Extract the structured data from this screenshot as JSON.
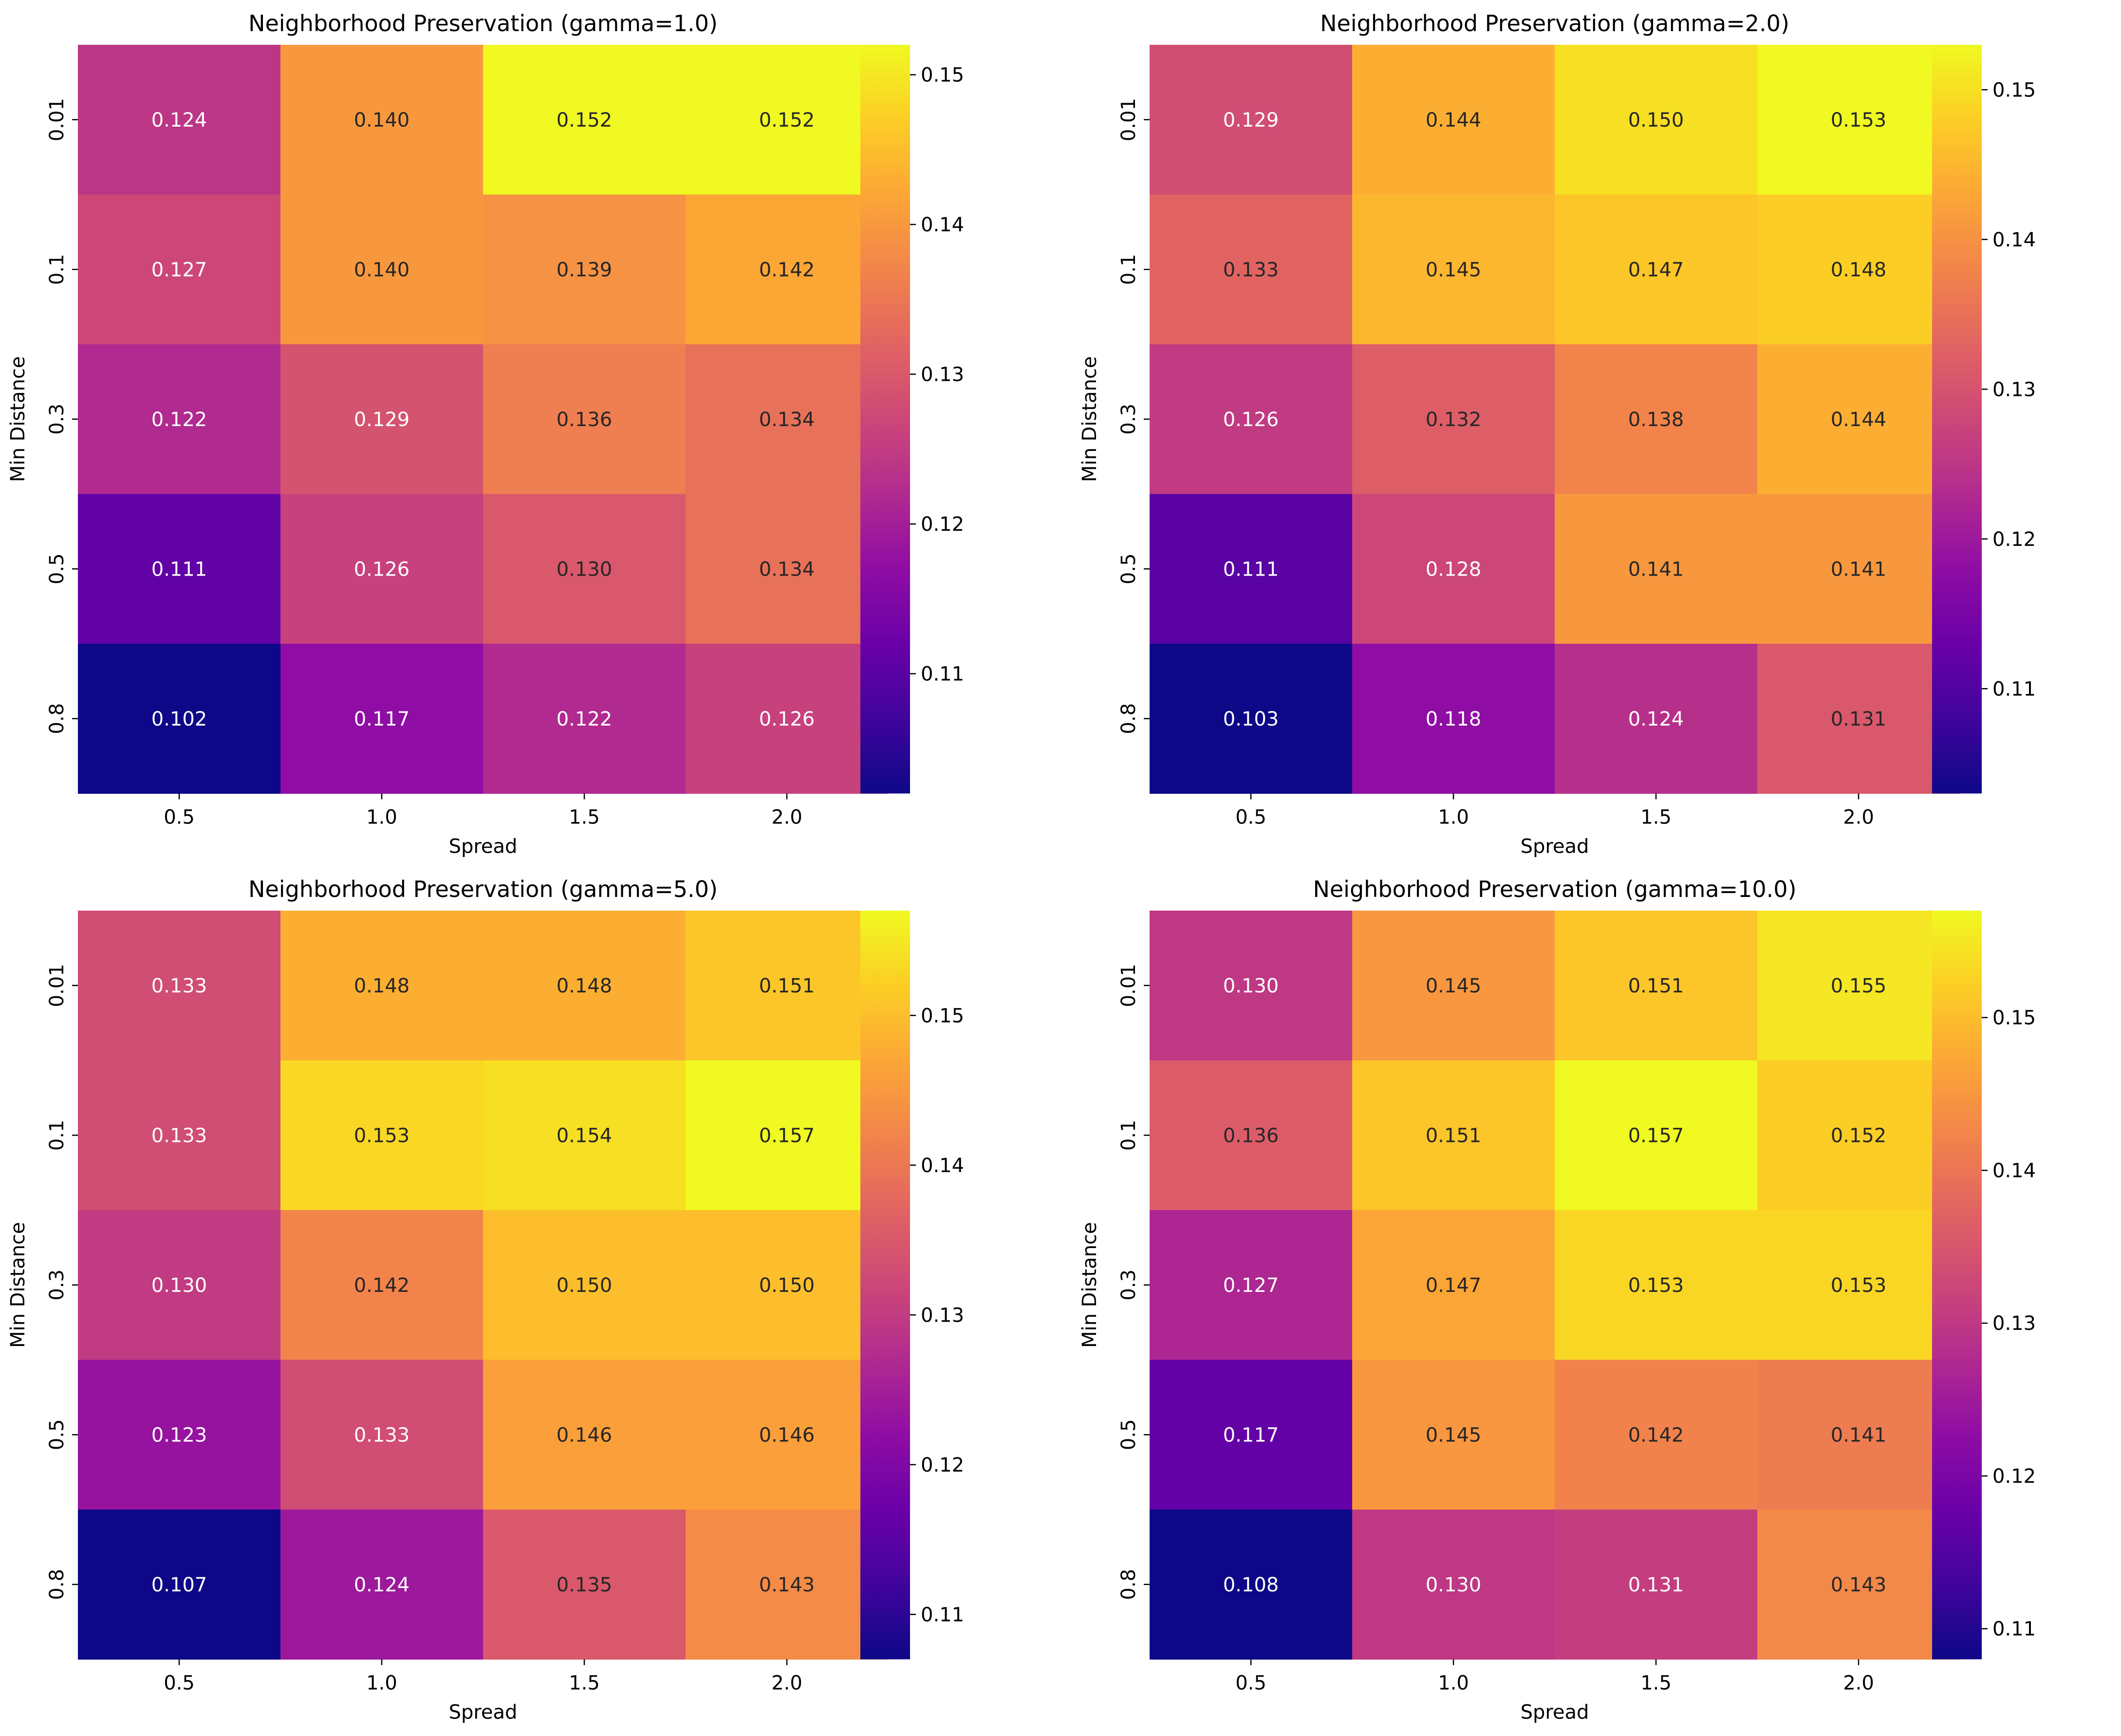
{
  "chart_data": [
    {
      "type": "heatmap",
      "title": "Neighborhood Preservation (gamma=1.0)",
      "xlabel": "Spread",
      "ylabel": "Min Distance",
      "x_categories": [
        "0.5",
        "1.0",
        "1.5",
        "2.0"
      ],
      "y_categories": [
        "0.01",
        "0.1",
        "0.3",
        "0.5",
        "0.8"
      ],
      "values": [
        [
          0.124,
          0.14,
          0.152,
          0.152
        ],
        [
          0.127,
          0.14,
          0.139,
          0.142
        ],
        [
          0.122,
          0.129,
          0.136,
          0.134
        ],
        [
          0.111,
          0.126,
          0.13,
          0.134
        ],
        [
          0.102,
          0.117,
          0.122,
          0.126
        ]
      ],
      "labels": [
        [
          "0.124",
          "0.140",
          "0.152",
          "0.152"
        ],
        [
          "0.127",
          "0.140",
          "0.139",
          "0.142"
        ],
        [
          "0.122",
          "0.129",
          "0.136",
          "0.134"
        ],
        [
          "0.111",
          "0.126",
          "0.130",
          "0.134"
        ],
        [
          "0.102",
          "0.117",
          "0.122",
          "0.126"
        ]
      ],
      "colormap": "plasma",
      "color_range": [
        0.102,
        0.152
      ],
      "colorbar_ticks": [
        0.11,
        0.12,
        0.13,
        0.14,
        0.15
      ],
      "colorbar_tick_labels": [
        "0.11",
        "0.12",
        "0.13",
        "0.14",
        "0.15"
      ],
      "grid": false,
      "legend": "none"
    },
    {
      "type": "heatmap",
      "title": "Neighborhood Preservation (gamma=2.0)",
      "xlabel": "Spread",
      "ylabel": "Min Distance",
      "x_categories": [
        "0.5",
        "1.0",
        "1.5",
        "2.0"
      ],
      "y_categories": [
        "0.01",
        "0.1",
        "0.3",
        "0.5",
        "0.8"
      ],
      "values": [
        [
          0.129,
          0.144,
          0.15,
          0.153
        ],
        [
          0.133,
          0.145,
          0.147,
          0.148
        ],
        [
          0.126,
          0.132,
          0.138,
          0.144
        ],
        [
          0.111,
          0.128,
          0.141,
          0.141
        ],
        [
          0.103,
          0.118,
          0.124,
          0.131
        ]
      ],
      "labels": [
        [
          "0.129",
          "0.144",
          "0.150",
          "0.153"
        ],
        [
          "0.133",
          "0.145",
          "0.147",
          "0.148"
        ],
        [
          "0.126",
          "0.132",
          "0.138",
          "0.144"
        ],
        [
          "0.111",
          "0.128",
          "0.141",
          "0.141"
        ],
        [
          "0.103",
          "0.118",
          "0.124",
          "0.131"
        ]
      ],
      "colormap": "plasma",
      "color_range": [
        0.103,
        0.153
      ],
      "colorbar_ticks": [
        0.11,
        0.12,
        0.13,
        0.14,
        0.15
      ],
      "colorbar_tick_labels": [
        "0.11",
        "0.12",
        "0.13",
        "0.14",
        "0.15"
      ],
      "grid": false,
      "legend": "none"
    },
    {
      "type": "heatmap",
      "title": "Neighborhood Preservation (gamma=5.0)",
      "xlabel": "Spread",
      "ylabel": "Min Distance",
      "x_categories": [
        "0.5",
        "1.0",
        "1.5",
        "2.0"
      ],
      "y_categories": [
        "0.01",
        "0.1",
        "0.3",
        "0.5",
        "0.8"
      ],
      "values": [
        [
          0.133,
          0.148,
          0.148,
          0.151
        ],
        [
          0.133,
          0.153,
          0.154,
          0.157
        ],
        [
          0.13,
          0.142,
          0.15,
          0.15
        ],
        [
          0.123,
          0.133,
          0.146,
          0.146
        ],
        [
          0.107,
          0.124,
          0.135,
          0.143
        ]
      ],
      "labels": [
        [
          "0.133",
          "0.148",
          "0.148",
          "0.151"
        ],
        [
          "0.133",
          "0.153",
          "0.154",
          "0.157"
        ],
        [
          "0.130",
          "0.142",
          "0.150",
          "0.150"
        ],
        [
          "0.123",
          "0.133",
          "0.146",
          "0.146"
        ],
        [
          "0.107",
          "0.124",
          "0.135",
          "0.143"
        ]
      ],
      "colormap": "plasma",
      "color_range": [
        0.107,
        0.157
      ],
      "colorbar_ticks": [
        0.11,
        0.12,
        0.13,
        0.14,
        0.15
      ],
      "colorbar_tick_labels": [
        "0.11",
        "0.12",
        "0.13",
        "0.14",
        "0.15"
      ],
      "grid": false,
      "legend": "none"
    },
    {
      "type": "heatmap",
      "title": "Neighborhood Preservation (gamma=10.0)",
      "xlabel": "Spread",
      "ylabel": "Min Distance",
      "x_categories": [
        "0.5",
        "1.0",
        "1.5",
        "2.0"
      ],
      "y_categories": [
        "0.01",
        "0.1",
        "0.3",
        "0.5",
        "0.8"
      ],
      "values": [
        [
          0.13,
          0.145,
          0.151,
          0.155
        ],
        [
          0.136,
          0.151,
          0.157,
          0.152
        ],
        [
          0.127,
          0.147,
          0.153,
          0.153
        ],
        [
          0.117,
          0.145,
          0.142,
          0.141
        ],
        [
          0.108,
          0.13,
          0.131,
          0.143
        ]
      ],
      "labels": [
        [
          "0.130",
          "0.145",
          "0.151",
          "0.155"
        ],
        [
          "0.136",
          "0.151",
          "0.157",
          "0.152"
        ],
        [
          "0.127",
          "0.147",
          "0.153",
          "0.153"
        ],
        [
          "0.117",
          "0.145",
          "0.142",
          "0.141"
        ],
        [
          "0.108",
          "0.130",
          "0.131",
          "0.143"
        ]
      ],
      "colormap": "plasma",
      "color_range": [
        0.108,
        0.157
      ],
      "colorbar_ticks": [
        0.11,
        0.12,
        0.13,
        0.14,
        0.15
      ],
      "colorbar_tick_labels": [
        "0.11",
        "0.12",
        "0.13",
        "0.14",
        "0.15"
      ],
      "grid": false,
      "legend": "none"
    }
  ]
}
